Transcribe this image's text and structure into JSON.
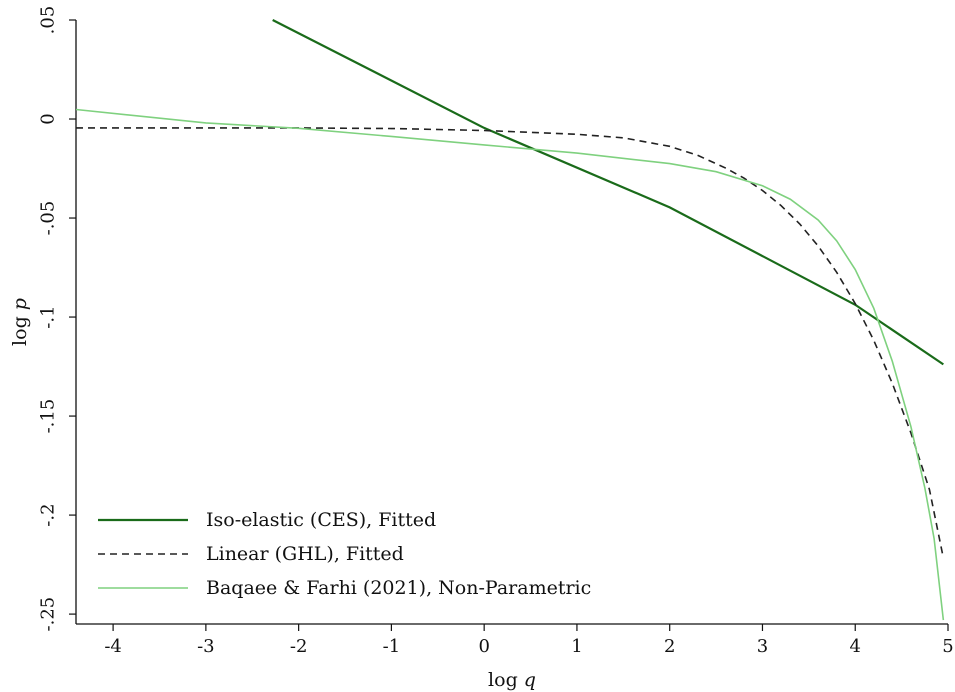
{
  "chart_data": {
    "type": "line",
    "title": "",
    "xlabel": "log q",
    "xlabel_parts": [
      "log ",
      "q"
    ],
    "ylabel": "log p",
    "ylabel_parts": [
      "log ",
      "p"
    ],
    "xlim": [
      -4.4,
      5.0
    ],
    "ylim": [
      -0.255,
      0.05
    ],
    "xticks": [
      {
        "value": -4,
        "label": "-4"
      },
      {
        "value": -3,
        "label": "-3"
      },
      {
        "value": -2,
        "label": "-2"
      },
      {
        "value": -1,
        "label": "-1"
      },
      {
        "value": 0,
        "label": "0"
      },
      {
        "value": 1,
        "label": "1"
      },
      {
        "value": 2,
        "label": "2"
      },
      {
        "value": 3,
        "label": "3"
      },
      {
        "value": 4,
        "label": "4"
      },
      {
        "value": 5,
        "label": "5"
      }
    ],
    "yticks": [
      {
        "value": 0.05,
        "label": ".05"
      },
      {
        "value": 0,
        "label": "0"
      },
      {
        "value": -0.05,
        "label": "-.05"
      },
      {
        "value": -0.1,
        "label": "-.1"
      },
      {
        "value": -0.15,
        "label": "-.15"
      },
      {
        "value": -0.2,
        "label": "-.2"
      },
      {
        "value": -0.25,
        "label": "-.25"
      }
    ],
    "grid": false,
    "legend": "bottom-left",
    "series": [
      {
        "name": "Iso-elastic (CES), Fitted",
        "color": "#1a6b1a",
        "dash": "solid",
        "x": [
          -2.28,
          0.0,
          2.0,
          4.0,
          4.95
        ],
        "y": [
          0.05,
          -0.0045,
          -0.0446,
          -0.0938,
          -0.1239
        ]
      },
      {
        "name": "Linear (GHL), Fitted",
        "color": "#222222",
        "dash": "dashed",
        "x": [
          -4.4,
          -3.0,
          -2.0,
          -1.0,
          0.0,
          1.0,
          1.5,
          2.0,
          2.3,
          2.6,
          2.8,
          3.0,
          3.2,
          3.4,
          3.6,
          3.8,
          4.0,
          4.2,
          4.4,
          4.6,
          4.8,
          4.95
        ],
        "y": [
          -0.0045,
          -0.0045,
          -0.0045,
          -0.0048,
          -0.0058,
          -0.0077,
          -0.0095,
          -0.0138,
          -0.0183,
          -0.0247,
          -0.0298,
          -0.0361,
          -0.0437,
          -0.0529,
          -0.0641,
          -0.0774,
          -0.0932,
          -0.1118,
          -0.1335,
          -0.1585,
          -0.1871,
          -0.2217
        ]
      },
      {
        "name": "Baqaee & Farhi (2021), Non-Parametric",
        "color": "#7fd17f",
        "dash": "solid",
        "x": [
          -4.4,
          -3.0,
          -2.0,
          -1.0,
          0.0,
          1.0,
          2.0,
          2.5,
          3.0,
          3.3,
          3.6,
          3.8,
          4.0,
          4.2,
          4.4,
          4.6,
          4.75,
          4.85,
          4.95
        ],
        "y": [
          0.0048,
          -0.002,
          -0.0047,
          -0.0088,
          -0.0131,
          -0.0172,
          -0.0225,
          -0.0266,
          -0.0337,
          -0.0405,
          -0.051,
          -0.0615,
          -0.076,
          -0.0956,
          -0.1224,
          -0.1553,
          -0.1862,
          -0.2118,
          -0.253
        ]
      }
    ]
  }
}
